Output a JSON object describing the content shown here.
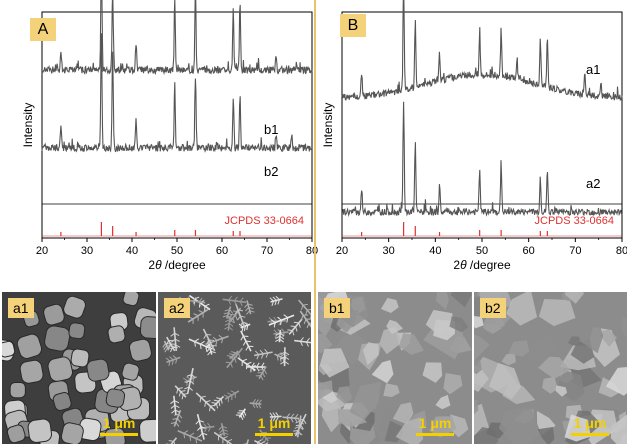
{
  "colors": {
    "pattern": "#555555",
    "reference": "#e03030",
    "tag_bg": "#f4d27a",
    "scale": "#f4d000",
    "divider": "#e6c46d"
  },
  "panels": {
    "A": {
      "tag": "A",
      "curve_labels": [
        "b1",
        "b2"
      ],
      "reference_label": "JCPDS 33-0664"
    },
    "B": {
      "tag": "B",
      "curve_labels": [
        "a1",
        "a2"
      ],
      "reference_label": "JCPDS 33-0664"
    }
  },
  "axes": {
    "ylabel": "Intensity",
    "xlabel_prefix": "2",
    "xlabel_theta": "θ",
    "xlabel_suffix": " /degree",
    "xticks": [
      "20",
      "30",
      "40",
      "50",
      "60",
      "70",
      "80"
    ]
  },
  "sem": [
    {
      "tag": "a1",
      "scale_label": "1 μm",
      "texture": "cubes"
    },
    {
      "tag": "a2",
      "scale_label": "1 μm",
      "texture": "dendrites"
    },
    {
      "tag": "b1",
      "scale_label": "1 μm",
      "texture": "flakes"
    },
    {
      "tag": "b2",
      "scale_label": "1 μm",
      "texture": "flakes"
    }
  ],
  "chart_data": [
    {
      "type": "line",
      "panel": "A",
      "xlabel": "2θ /degree",
      "ylabel": "Intensity",
      "xlim": [
        20,
        80
      ],
      "xticks": [
        20,
        30,
        40,
        50,
        60,
        70,
        80
      ],
      "reference": {
        "name": "JCPDS 33-0664",
        "positions": [
          24.2,
          33.2,
          35.7,
          40.9,
          49.5,
          54.1,
          62.5,
          64.0
        ]
      },
      "series": [
        {
          "name": "b1",
          "peaks": [
            [
              24.2,
              0.2
            ],
            [
              33.2,
              1.0
            ],
            [
              35.7,
              0.85
            ],
            [
              40.9,
              0.25
            ],
            [
              49.5,
              0.55
            ],
            [
              54.1,
              0.62
            ],
            [
              62.5,
              0.42
            ],
            [
              64.0,
              0.48
            ],
            [
              72.0,
              0.12
            ],
            [
              75.5,
              0.1
            ]
          ]
        },
        {
          "name": "b2",
          "peaks": [
            [
              24.2,
              0.18
            ],
            [
              33.2,
              1.0
            ],
            [
              35.7,
              0.72
            ],
            [
              40.9,
              0.22
            ],
            [
              49.5,
              0.62
            ],
            [
              54.1,
              0.72
            ],
            [
              62.5,
              0.55
            ],
            [
              64.0,
              0.6
            ],
            [
              72.0,
              0.1
            ]
          ]
        }
      ]
    },
    {
      "type": "line",
      "panel": "B",
      "xlabel": "2θ /degree",
      "ylabel": "Intensity",
      "xlim": [
        20,
        80
      ],
      "xticks": [
        20,
        30,
        40,
        50,
        60,
        70,
        80
      ],
      "reference": {
        "name": "JCPDS 33-0664",
        "positions": [
          24.2,
          33.2,
          35.7,
          40.9,
          49.5,
          54.1,
          62.5,
          64.0
        ]
      },
      "series": [
        {
          "name": "a1",
          "peaks": [
            [
              24.2,
              0.22
            ],
            [
              33.2,
              1.0
            ],
            [
              35.7,
              0.62
            ],
            [
              40.9,
              0.25
            ],
            [
              49.5,
              0.4
            ],
            [
              54.1,
              0.45
            ],
            [
              62.5,
              0.32
            ],
            [
              64.0,
              0.38
            ]
          ]
        },
        {
          "name": "a2",
          "peaks": [
            [
              24.2,
              0.22
            ],
            [
              33.2,
              1.0
            ],
            [
              35.7,
              0.62
            ],
            [
              40.9,
              0.25
            ],
            [
              49.5,
              0.38
            ],
            [
              54.1,
              0.45
            ],
            [
              57.5,
              0.2
            ],
            [
              62.5,
              0.42
            ],
            [
              64.0,
              0.48
            ],
            [
              72.0,
              0.2
            ],
            [
              75.5,
              0.12
            ]
          ]
        }
      ]
    }
  ]
}
